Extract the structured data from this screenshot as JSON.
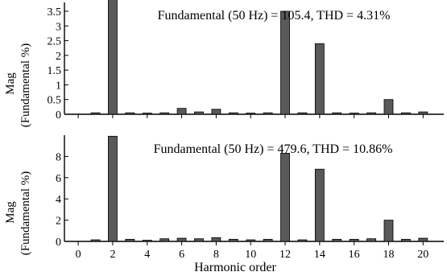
{
  "figure": {
    "xlabel": "Harmonic order",
    "x_tick_labels": [
      "0",
      "2",
      "4",
      "6",
      "8",
      "10",
      "12",
      "14",
      "16",
      "18",
      "20"
    ]
  },
  "chart_data": [
    {
      "type": "bar",
      "annotation": "Fundamental (50 Hz) = 105.4, THD = 4.31%",
      "ylabel_line1": "Mag",
      "ylabel_line2": "(Fundamental %)",
      "ylim": [
        0,
        3.8
      ],
      "y_ticks": [
        0,
        0.5,
        1,
        1.5,
        2,
        2.5,
        3,
        3.5
      ],
      "y_tick_labels": [
        "0",
        "0.5",
        "1",
        "1.5",
        "2",
        "2.5",
        "3",
        "3.5"
      ],
      "grid": false,
      "categories": [
        1,
        2,
        3,
        4,
        5,
        6,
        7,
        8,
        9,
        10,
        11,
        12,
        13,
        14,
        15,
        16,
        17,
        18,
        19,
        20
      ],
      "values": [
        0.05,
        3.9,
        0.05,
        0.04,
        0.05,
        0.2,
        0.08,
        0.17,
        0.05,
        0.04,
        0.05,
        3.5,
        0.05,
        2.4,
        0.05,
        0.04,
        0.05,
        0.5,
        0.05,
        0.08
      ]
    },
    {
      "type": "bar",
      "annotation": "Fundamental (50 Hz) = 479.6, THD = 10.86%",
      "ylabel_line1": "Mag",
      "ylabel_line2": "(Fundamental %)",
      "ylim": [
        0,
        10
      ],
      "y_ticks": [
        0,
        2,
        4,
        6,
        8
      ],
      "y_tick_labels": [
        "0",
        "2",
        "4",
        "6",
        "8"
      ],
      "grid": false,
      "categories": [
        1,
        2,
        3,
        4,
        5,
        6,
        7,
        8,
        9,
        10,
        11,
        12,
        13,
        14,
        15,
        16,
        17,
        18,
        19,
        20
      ],
      "values": [
        0.15,
        9.9,
        0.2,
        0.1,
        0.25,
        0.3,
        0.25,
        0.35,
        0.2,
        0.15,
        0.2,
        8.3,
        0.15,
        6.8,
        0.2,
        0.2,
        0.25,
        2.0,
        0.2,
        0.3
      ]
    }
  ],
  "colors": {
    "bar_fill": "#595959",
    "bar_stroke": "#000000",
    "axis": "#000000"
  }
}
